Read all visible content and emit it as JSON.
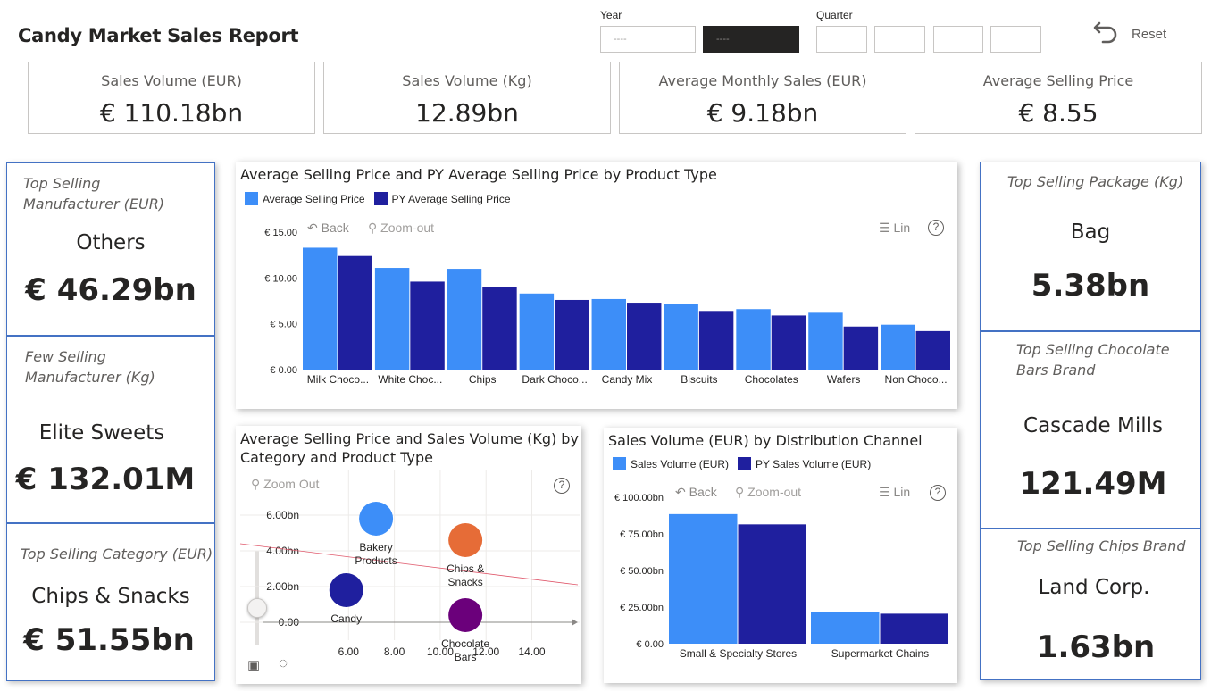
{
  "header": {
    "title": "Candy Market Sales Report"
  },
  "slicers": {
    "year_label": "Year",
    "year_options": [
      "----",
      "----"
    ],
    "quarter_label": "Quarter",
    "reset_label": "Reset",
    "reset_icon": "undo-arrow-icon"
  },
  "kpis": [
    {
      "label": "Sales Volume (EUR)",
      "value": "€ 110.18bn"
    },
    {
      "label": "Sales Volume (Kg)",
      "value": "12.89bn"
    },
    {
      "label": "Average Monthly Sales (EUR)",
      "value": "€ 9.18bn"
    },
    {
      "label": "Average Selling Price",
      "value": "€ 8.55"
    }
  ],
  "left_cards": [
    {
      "label_lines": [
        "Top Selling",
        "Manufacturer (EUR)"
      ],
      "name": "Others",
      "value": "€ 46.29bn"
    },
    {
      "label_lines": [
        "Few Selling",
        "Manufacturer (Kg)"
      ],
      "name": "Elite Sweets",
      "value": "€ 132.01M"
    },
    {
      "label_lines": [
        "Top Selling Category (EUR)"
      ],
      "name": "Chips & Snacks",
      "value": "€ 51.55bn"
    }
  ],
  "right_cards": [
    {
      "label_lines": [
        "Top Selling Package (Kg)"
      ],
      "name": "Bag",
      "value": "5.38bn"
    },
    {
      "label_lines": [
        "Top Selling Chocolate",
        "Bars Brand"
      ],
      "name": "Cascade Mills",
      "value": "121.49M"
    },
    {
      "label_lines": [
        "Top Selling Chips Brand"
      ],
      "name": "Land Corp.",
      "value": "1.63bn"
    }
  ],
  "toolbar": {
    "back": "Back",
    "zoom_out": "Zoom-out",
    "zoom_out_alt": "Zoom Out",
    "lin": "Lin",
    "help": "?"
  },
  "colors": {
    "series_current": "#3d8ef8",
    "series_py": "#1f1f9e",
    "card_border": "#4472c4",
    "trend_line": "#e05a6d"
  },
  "chart_data": [
    {
      "type": "bar",
      "title": "Average Selling Price and PY Average Selling Price by Product Type",
      "categories": [
        "Milk Choco...",
        "White Choc...",
        "Chips",
        "Dark Choco...",
        "Candy Mix",
        "Biscuits",
        "Chocolates",
        "Wafers",
        "Non Choco..."
      ],
      "series": [
        {
          "name": "Average Selling Price",
          "values": [
            13.3,
            11.1,
            11.0,
            8.3,
            7.7,
            7.2,
            6.6,
            6.2,
            4.9
          ]
        },
        {
          "name": "PY Average Selling Price",
          "values": [
            12.4,
            9.6,
            9.0,
            7.6,
            7.3,
            6.4,
            5.9,
            4.7,
            4.2
          ]
        }
      ],
      "y_ticks": [
        "€ 0.00",
        "€ 5.00",
        "€ 10.00",
        "€ 15.00"
      ],
      "ylim": [
        0,
        15
      ]
    },
    {
      "type": "scatter",
      "title_lines": [
        "Average Selling Price and Sales Volume (Kg) by",
        "Category and Product Type"
      ],
      "x_ticks": [
        "6.00",
        "8.00",
        "10.00",
        "12.00",
        "14.00"
      ],
      "y_ticks": [
        "0.00",
        "2.00bn",
        "4.00bn",
        "6.00bn"
      ],
      "xlim": [
        4.0,
        15.5
      ],
      "ylim": [
        -0.5,
        7.5
      ],
      "points": [
        {
          "name_lines": [
            "Bakery",
            "Products"
          ],
          "x": 7.2,
          "y": 5.8,
          "color": "#3d8ef8"
        },
        {
          "name_lines": [
            "Chips &",
            "Snacks"
          ],
          "x": 11.1,
          "y": 4.6,
          "color": "#e66c37"
        },
        {
          "name_lines": [
            "Candy"
          ],
          "x": 5.9,
          "y": 1.8,
          "color": "#1f1f9e"
        },
        {
          "name_lines": [
            "Chocolate",
            "Bars"
          ],
          "x": 11.1,
          "y": 0.4,
          "color": "#6b007b"
        }
      ],
      "trend_line": [
        [
          4.0,
          4.4
        ],
        [
          15.5,
          2.1
        ]
      ]
    },
    {
      "type": "bar",
      "title": "Sales Volume (EUR) by Distribution Channel",
      "categories": [
        "Small & Specialty Stores",
        "Supermarket Chains"
      ],
      "series": [
        {
          "name": "Sales Volume (EUR)",
          "values": [
            88.5,
            21.5
          ]
        },
        {
          "name": "PY Sales Volume (EUR)",
          "values": [
            81.5,
            20.5
          ]
        }
      ],
      "y_ticks": [
        "€ 0.00",
        "€ 25.00bn",
        "€ 50.00bn",
        "€ 75.00bn",
        "€ 100.00bn"
      ],
      "ylim": [
        0,
        100
      ]
    }
  ]
}
